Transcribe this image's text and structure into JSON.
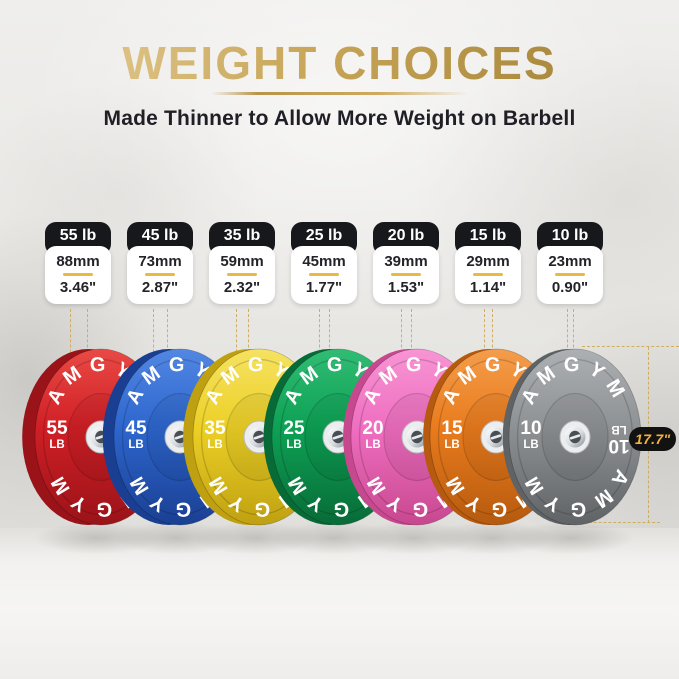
{
  "header": {
    "title": "WEIGHT CHOICES",
    "subtitle": "Made Thinner to Allow More Weight on Barbell"
  },
  "brand": "AMGYM",
  "diameter": {
    "label": "17.7\""
  },
  "colors": {
    "title_gold": "#c7a558",
    "guide_gold": "#cda852",
    "card_header_bg": "#17181b",
    "badge_bg": "#121212",
    "badge_text": "#f1b33c"
  },
  "cards": [
    {
      "label": "55 lb",
      "mm": "88mm",
      "inch": "3.46\""
    },
    {
      "label": "45 lb",
      "mm": "73mm",
      "inch": "2.87\""
    },
    {
      "label": "35 lb",
      "mm": "59mm",
      "inch": "2.32\""
    },
    {
      "label": "25 lb",
      "mm": "45mm",
      "inch": "1.77\""
    },
    {
      "label": "20 lb",
      "mm": "39mm",
      "inch": "1.53\""
    },
    {
      "label": "15 lb",
      "mm": "29mm",
      "inch": "1.14\""
    },
    {
      "label": "10 lb",
      "mm": "23mm",
      "inch": "0.90\""
    }
  ],
  "plates": [
    {
      "weight": "55",
      "unit": "LB",
      "color": "#d01f26",
      "dark": "#991318",
      "light": "#e94a45"
    },
    {
      "weight": "45",
      "unit": "LB",
      "color": "#2d66cd",
      "dark": "#1a3f92",
      "light": "#5287e3"
    },
    {
      "weight": "35",
      "unit": "LB",
      "color": "#ecd026",
      "dark": "#bfa011",
      "light": "#f6e262"
    },
    {
      "weight": "25",
      "unit": "LB",
      "color": "#0da154",
      "dark": "#086b37",
      "light": "#31bc74"
    },
    {
      "weight": "20",
      "unit": "LB",
      "color": "#ef6ec0",
      "dark": "#c7488f",
      "light": "#f795d4"
    },
    {
      "weight": "15",
      "unit": "LB",
      "color": "#e97b1d",
      "dark": "#b55a0e",
      "light": "#f49d4b"
    },
    {
      "weight": "10",
      "unit": "LB",
      "color": "#8e9194",
      "dark": "#606366",
      "light": "#adb0b3"
    }
  ]
}
